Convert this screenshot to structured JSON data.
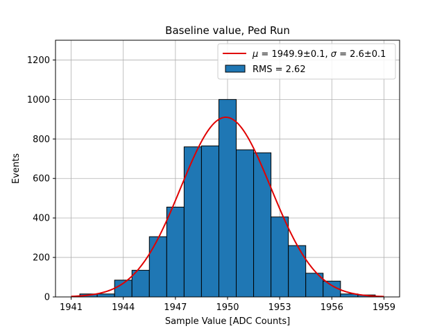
{
  "chart_data": {
    "type": "bar",
    "title": "Baseline value, Ped Run",
    "xlabel": "Sample Value [ADC Counts]",
    "ylabel": "Events",
    "xlim": [
      1940.1,
      1959.9
    ],
    "ylim": [
      0,
      1300
    ],
    "grid": true,
    "legend_position": "top-right",
    "x_ticks": [
      1941,
      1944,
      1947,
      1950,
      1953,
      1956,
      1959
    ],
    "y_ticks": [
      0,
      200,
      400,
      600,
      800,
      1000,
      1200
    ],
    "bin_width": 1,
    "histogram": {
      "name": "RMS = 2.62",
      "color": "#1f77b4",
      "edge_color": "#000000",
      "bin_starts": [
        1941.5,
        1942.5,
        1943.5,
        1944.5,
        1945.5,
        1946.5,
        1947.5,
        1948.5,
        1949.5,
        1950.5,
        1951.5,
        1952.5,
        1953.5,
        1954.5,
        1955.5,
        1956.5,
        1957.5
      ],
      "values": [
        15,
        15,
        85,
        135,
        305,
        455,
        760,
        765,
        1000,
        745,
        730,
        405,
        260,
        120,
        80,
        15,
        10
      ]
    },
    "fit": {
      "name": "μ = 1949.9±0.1, σ = 2.6±0.1",
      "legend_prefix_mu": "μ",
      "legend_mu_text": " = 1949.9±0.1, ",
      "legend_prefix_sigma": "σ",
      "legend_sigma_text": " = 2.6±0.1",
      "type": "gaussian",
      "mu": 1949.9,
      "sigma": 2.6,
      "amplitude": 910,
      "x_range": [
        1941,
        1959
      ],
      "color": "#e00000"
    }
  }
}
